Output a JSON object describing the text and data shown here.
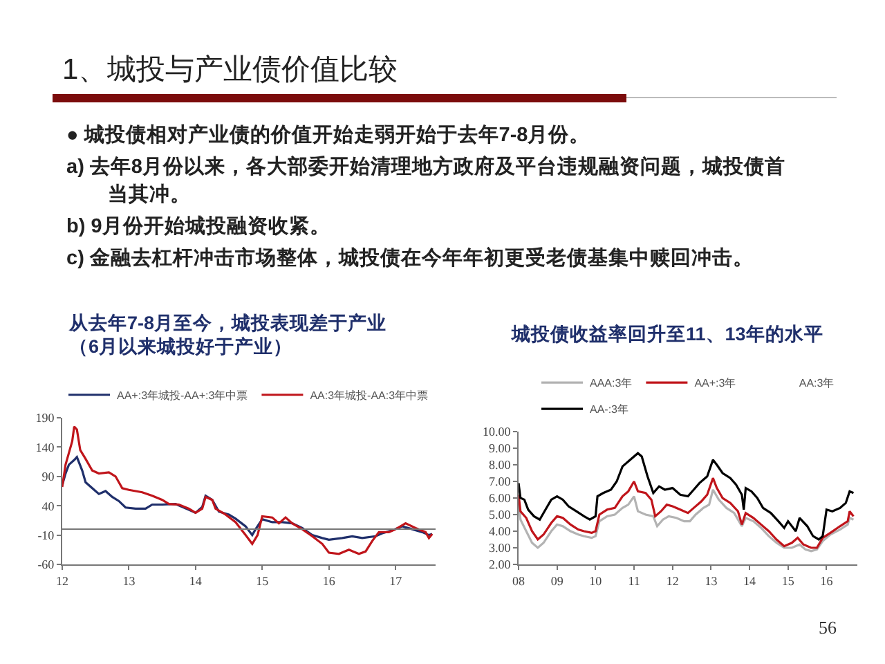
{
  "chart_data": [
    {
      "type": "other",
      "title": "1、城投与产业债价值比较",
      "annotations": [
        "● 城投债相对产业债的价值开始走弱开始于去年7-8月份。",
        "a) 去年8月份以来，各大部委开始清理地方政府及平台违规融资问题，城投债首当其冲。",
        "b) 9月份开始城投融资收紧。",
        "c) 金融去杠杆冲击市场整体，城投债在今年年初更受老债基集中赎回冲击。",
        "56"
      ]
    },
    {
      "type": "line",
      "title": "从去年7-8月至今，城投表现差于产业（6月以来城投好于产业）",
      "xlim": [
        2012,
        2017.6
      ],
      "xticks": [
        {
          "value": 2012,
          "label": "12"
        },
        {
          "value": 2013,
          "label": "13"
        },
        {
          "value": 2014,
          "label": "14"
        },
        {
          "value": 2015,
          "label": "15"
        },
        {
          "value": 2016,
          "label": "16"
        },
        {
          "value": 2017,
          "label": "17"
        }
      ],
      "ylim": [
        -60,
        190
      ],
      "yticks": [
        -60,
        -10,
        40,
        90,
        140,
        190
      ],
      "grid": false,
      "legend": "top",
      "ref_lines": [
        {
          "axis": "y",
          "value": 0
        }
      ],
      "series": [
        {
          "name": "AA+:3年城投-AA+:3年中票",
          "color": "#1f2f6b",
          "x": [
            2012,
            2012.05,
            2012.1,
            2012.18,
            2012.22,
            2012.3,
            2012.35,
            2012.45,
            2012.55,
            2012.65,
            2012.75,
            2012.85,
            2012.95,
            2013.1,
            2013.25,
            2013.35,
            2013.5,
            2013.7,
            2013.9,
            2014,
            2014.1,
            2014.15,
            2014.25,
            2014.35,
            2014.5,
            2014.6,
            2014.75,
            2014.85,
            2014.9,
            2015,
            2015.15,
            2015.3,
            2015.45,
            2015.6,
            2015.75,
            2015.9,
            2016,
            2016.2,
            2016.35,
            2016.5,
            2016.7,
            2016.8,
            2016.95,
            2017.1,
            2017.25,
            2017.4,
            2017.5,
            2017.55
          ],
          "values": [
            75,
            95,
            110,
            118,
            123,
            100,
            80,
            70,
            60,
            65,
            55,
            48,
            37,
            35,
            35,
            42,
            42,
            43,
            33,
            28,
            38,
            57,
            50,
            30,
            25,
            18,
            5,
            -10,
            0,
            17,
            12,
            12,
            10,
            2,
            -10,
            -15,
            -18,
            -15,
            -12,
            -15,
            -12,
            -7,
            -2,
            5,
            0,
            -5,
            -10,
            -8
          ]
        },
        {
          "name": "AA:3年城投-AA:3年中票",
          "color": "#c0151b",
          "x": [
            2012,
            2012.05,
            2012.1,
            2012.15,
            2012.18,
            2012.22,
            2012.27,
            2012.35,
            2012.45,
            2012.55,
            2012.7,
            2012.8,
            2012.9,
            2013,
            2013.2,
            2013.35,
            2013.5,
            2013.6,
            2013.75,
            2013.9,
            2014,
            2014.1,
            2014.15,
            2014.25,
            2014.3,
            2014.45,
            2014.6,
            2014.75,
            2014.85,
            2014.93,
            2015,
            2015.15,
            2015.25,
            2015.35,
            2015.45,
            2015.6,
            2015.75,
            2015.9,
            2016,
            2016.15,
            2016.3,
            2016.45,
            2016.55,
            2016.65,
            2016.75,
            2016.9,
            2017,
            2017.15,
            2017.3,
            2017.45,
            2017.5,
            2017.55
          ],
          "values": [
            72,
            110,
            130,
            150,
            175,
            170,
            135,
            120,
            100,
            95,
            97,
            90,
            70,
            67,
            63,
            57,
            50,
            43,
            42,
            35,
            28,
            35,
            55,
            50,
            35,
            25,
            12,
            -10,
            -25,
            -10,
            22,
            20,
            10,
            20,
            10,
            0,
            -12,
            -25,
            -40,
            -42,
            -35,
            -42,
            -38,
            -20,
            -5,
            -5,
            0,
            10,
            2,
            -5,
            -15,
            -8
          ]
        }
      ]
    },
    {
      "type": "line",
      "title": "城投债收益率回升至11、13年的水平",
      "xlim": [
        2008,
        2016.8
      ],
      "xticks": [
        {
          "value": 2008,
          "label": "08"
        },
        {
          "value": 2009,
          "label": "09"
        },
        {
          "value": 2010,
          "label": "10"
        },
        {
          "value": 2011,
          "label": "11"
        },
        {
          "value": 2012,
          "label": "12"
        },
        {
          "value": 2013,
          "label": "13"
        },
        {
          "value": 2014,
          "label": "14"
        },
        {
          "value": 2015,
          "label": "15"
        },
        {
          "value": 2016,
          "label": "16"
        }
      ],
      "ylim": [
        2,
        10
      ],
      "yticks": [
        {
          "value": 2,
          "label": "2.00"
        },
        {
          "value": 3,
          "label": "3.00"
        },
        {
          "value": 4,
          "label": "4.00"
        },
        {
          "value": 5,
          "label": "5.00"
        },
        {
          "value": 6,
          "label": "6.00"
        },
        {
          "value": 7,
          "label": "7.00"
        },
        {
          "value": 8,
          "label": "8.00"
        },
        {
          "value": 9,
          "label": "9.00"
        },
        {
          "value": 10,
          "label": "10.00"
        }
      ],
      "grid": false,
      "legend": "top",
      "series": [
        {
          "name": "AAA:3年",
          "color": "#b3b3b3",
          "x": [
            2008,
            2008.05,
            2008.2,
            2008.35,
            2008.5,
            2008.65,
            2008.85,
            2009,
            2009.15,
            2009.35,
            2009.55,
            2009.7,
            2009.9,
            2010,
            2010.1,
            2010.3,
            2010.5,
            2010.7,
            2010.85,
            2011,
            2011.1,
            2011.3,
            2011.5,
            2011.6,
            2011.75,
            2011.9,
            2012.1,
            2012.3,
            2012.45,
            2012.6,
            2012.8,
            2012.95,
            2013.05,
            2013.2,
            2013.4,
            2013.6,
            2013.75,
            2013.8,
            2013.9,
            2014.1,
            2014.3,
            2014.5,
            2014.7,
            2014.9,
            2015.1,
            2015.3,
            2015.45,
            2015.6,
            2015.75,
            2015.9,
            2016.1,
            2016.35,
            2016.55,
            2016.6,
            2016.7
          ],
          "values": [
            5.8,
            4.7,
            4.0,
            3.3,
            3.0,
            3.3,
            4.0,
            4.4,
            4.3,
            4.0,
            3.8,
            3.7,
            3.6,
            3.7,
            4.6,
            4.9,
            5.0,
            5.4,
            5.6,
            6.1,
            5.2,
            5.0,
            4.9,
            4.3,
            4.7,
            4.9,
            4.8,
            4.6,
            4.6,
            5.0,
            5.4,
            5.6,
            6.5,
            5.9,
            5.4,
            5.1,
            4.5,
            4.3,
            4.8,
            4.6,
            4.2,
            3.7,
            3.3,
            3.0,
            3.0,
            3.2,
            2.9,
            2.8,
            2.9,
            3.4,
            3.8,
            4.1,
            4.4,
            4.8,
            4.7
          ]
        },
        {
          "name": "AA+:3年",
          "color": "#c0151b",
          "x": [
            2008,
            2008.05,
            2008.2,
            2008.35,
            2008.5,
            2008.65,
            2008.85,
            2009,
            2009.15,
            2009.35,
            2009.55,
            2009.7,
            2009.9,
            2010,
            2010.1,
            2010.3,
            2010.5,
            2010.7,
            2010.85,
            2011,
            2011.1,
            2011.3,
            2011.45,
            2011.55,
            2011.7,
            2011.85,
            2012,
            2012.2,
            2012.4,
            2012.55,
            2012.75,
            2012.9,
            2013.05,
            2013.15,
            2013.3,
            2013.5,
            2013.7,
            2013.8,
            2013.9,
            2014.1,
            2014.3,
            2014.5,
            2014.7,
            2014.9,
            2015.1,
            2015.25,
            2015.4,
            2015.6,
            2015.75,
            2015.9,
            2016.1,
            2016.35,
            2016.55,
            2016.6,
            2016.7
          ],
          "values": [
            6.2,
            5.2,
            4.8,
            4.0,
            3.5,
            3.8,
            4.5,
            4.9,
            4.8,
            4.4,
            4.1,
            4.0,
            3.9,
            4.0,
            5.0,
            5.3,
            5.4,
            6.1,
            6.4,
            7.0,
            6.4,
            6.3,
            5.9,
            4.9,
            5.2,
            5.6,
            5.5,
            5.3,
            5.1,
            5.4,
            5.8,
            6.2,
            7.2,
            6.6,
            6.0,
            5.7,
            5.2,
            4.4,
            5.1,
            4.8,
            4.4,
            4.0,
            3.5,
            3.1,
            3.3,
            3.6,
            3.2,
            3.0,
            3.0,
            3.6,
            3.9,
            4.3,
            4.6,
            5.2,
            4.9
          ]
        },
        {
          "name": "AA:3年"
        },
        {
          "name": "AA-:3年",
          "color": "#000000",
          "x": [
            2008,
            2008.05,
            2008.15,
            2008.25,
            2008.4,
            2008.55,
            2008.7,
            2008.85,
            2009,
            2009.15,
            2009.3,
            2009.5,
            2009.7,
            2009.85,
            2010,
            2010.05,
            2010.2,
            2010.4,
            2010.55,
            2010.7,
            2010.9,
            2011.1,
            2011.2,
            2011.35,
            2011.5,
            2011.65,
            2011.8,
            2012,
            2012.2,
            2012.4,
            2012.55,
            2012.7,
            2012.9,
            2013.05,
            2013.15,
            2013.3,
            2013.5,
            2013.65,
            2013.8,
            2013.85,
            2013.9,
            2014.05,
            2014.2,
            2014.35,
            2014.55,
            2014.75,
            2014.9,
            2015,
            2015.2,
            2015.3,
            2015.5,
            2015.65,
            2015.8,
            2015.9,
            2016,
            2016.15,
            2016.35,
            2016.5,
            2016.6,
            2016.7
          ],
          "values": [
            6.9,
            6.0,
            5.9,
            5.3,
            4.9,
            4.7,
            5.3,
            5.9,
            6.1,
            5.9,
            5.5,
            5.2,
            4.9,
            4.7,
            4.9,
            6.1,
            6.3,
            6.5,
            7.0,
            7.9,
            8.3,
            8.7,
            8.5,
            7.3,
            6.3,
            6.7,
            6.5,
            6.6,
            6.2,
            6.1,
            6.5,
            6.9,
            7.3,
            8.3,
            8.0,
            7.5,
            7.2,
            6.8,
            6.2,
            5.3,
            6.6,
            6.4,
            6.0,
            5.4,
            5.1,
            4.6,
            4.2,
            4.6,
            4.0,
            4.8,
            4.3,
            3.7,
            3.5,
            3.7,
            5.3,
            5.2,
            5.4,
            5.7,
            6.4,
            6.3
          ]
        }
      ]
    }
  ]
}
